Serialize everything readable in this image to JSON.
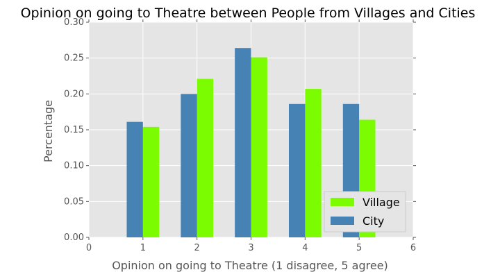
{
  "chart_data": {
    "type": "bar",
    "title": "Opinion on going to Theatre between People from Villages and Cities",
    "xlabel": "Opinion on going to Theatre (1 disagree, 5 agree)",
    "ylabel": "Percentage",
    "xlim": [
      0,
      6
    ],
    "ylim": [
      0,
      0.3
    ],
    "xticks": [
      "0",
      "1",
      "2",
      "3",
      "4",
      "5",
      "6"
    ],
    "yticks": [
      "0.00",
      "0.05",
      "0.10",
      "0.15",
      "0.20",
      "0.25",
      "0.30"
    ],
    "categories": [
      1,
      2,
      3,
      4,
      5
    ],
    "grid": true,
    "legend_position": "bottom-right",
    "series": [
      {
        "name": "Village",
        "color": "#7cfc00",
        "values": [
          0.154,
          0.221,
          0.251,
          0.207,
          0.164
        ]
      },
      {
        "name": "City",
        "color": "#4682b4",
        "values": [
          0.161,
          0.2,
          0.264,
          0.186,
          0.186
        ]
      }
    ]
  }
}
